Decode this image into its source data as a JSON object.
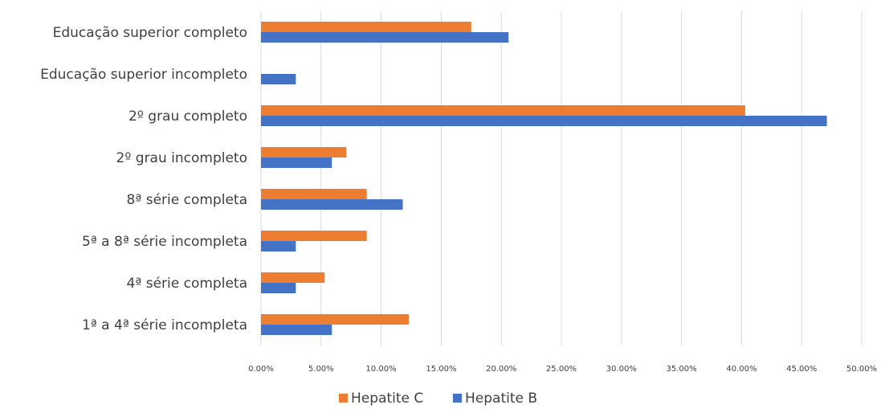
{
  "chart_data": {
    "type": "bar",
    "orientation": "horizontal",
    "title": "",
    "xlabel": "",
    "ylabel": "",
    "categories": [
      "Educação superior completo",
      "Educação superior incompleto",
      "2º grau completo",
      "2º grau incompleto",
      "8ª série completa",
      "5ª a 8ª série incompleta",
      "4ª série completa",
      "1ª a 4ª série incompleta"
    ],
    "series": [
      {
        "name": "Hepatite C",
        "color": "#ed7d31",
        "values": [
          17.5,
          0,
          40.3,
          7.1,
          8.8,
          8.8,
          5.3,
          12.3
        ]
      },
      {
        "name": "Hepatite B",
        "color": "#4472c4",
        "values": [
          20.6,
          2.9,
          47.1,
          5.9,
          11.8,
          2.9,
          2.9,
          5.9
        ]
      }
    ],
    "xlim": [
      0,
      50
    ],
    "xticks": [
      "0.00%",
      "5.00%",
      "10.00%",
      "15.00%",
      "20.00%",
      "25.00%",
      "30.00%",
      "35.00%",
      "40.00%",
      "45.00%",
      "50.00%"
    ],
    "grid": "vertical",
    "legend_position": "bottom"
  }
}
